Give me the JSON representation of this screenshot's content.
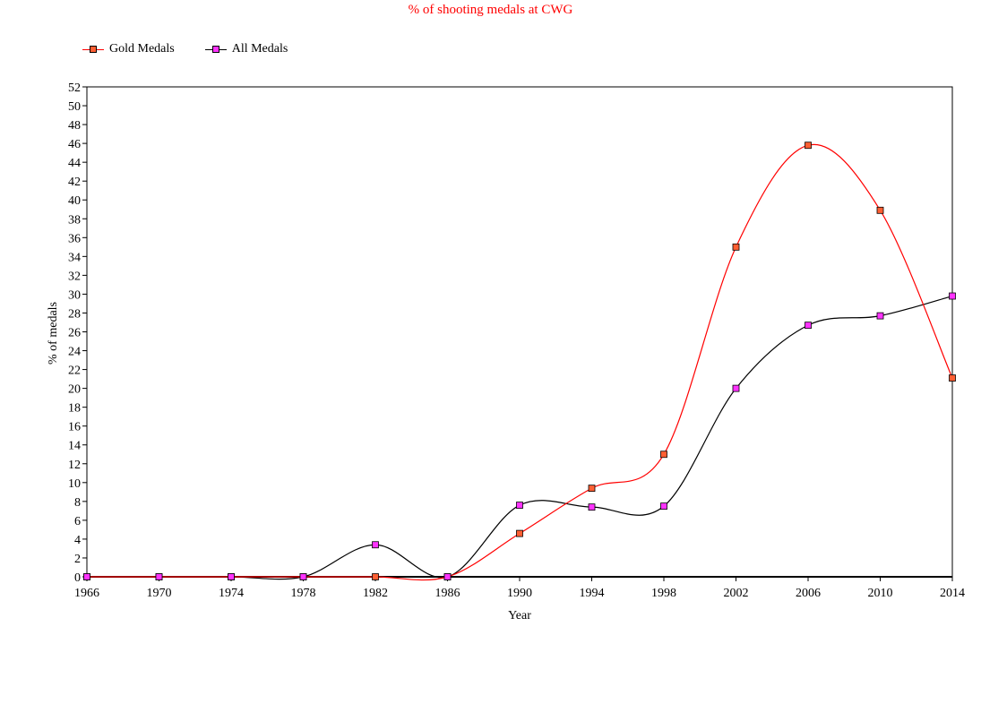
{
  "chart_data": {
    "type": "line",
    "title": "% of shooting medals at CWG",
    "xlabel": "Year",
    "ylabel": "% of medals",
    "categories": [
      "1966",
      "1970",
      "1974",
      "1978",
      "1982",
      "1986",
      "1990",
      "1994",
      "1998",
      "2002",
      "2006",
      "2010",
      "2014"
    ],
    "ylim": [
      0,
      52
    ],
    "ytick_step": 2,
    "legend_position": "top-left",
    "grid": false,
    "series": [
      {
        "name": "Gold Medals",
        "line_color": "#ff0000",
        "marker_color": "#ff5f33",
        "values": [
          0,
          0,
          0,
          0,
          0,
          0,
          4.6,
          9.4,
          13.0,
          35.0,
          45.8,
          38.9,
          21.1
        ]
      },
      {
        "name": "All Medals",
        "line_color": "#000000",
        "marker_color": "#ff33ff",
        "values": [
          0,
          0,
          0,
          0,
          3.4,
          0,
          7.6,
          7.4,
          7.5,
          20.0,
          26.7,
          27.7,
          29.8
        ]
      }
    ]
  }
}
